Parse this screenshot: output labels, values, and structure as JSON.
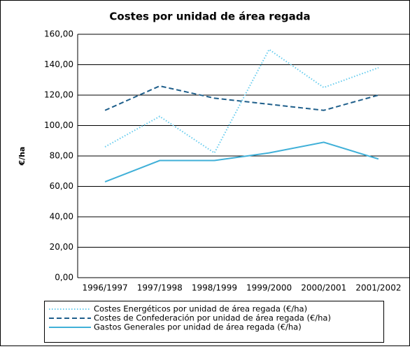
{
  "chart_data": {
    "type": "line",
    "title": "Costes por unidad de área regada",
    "y_label": "€/ha",
    "categories": [
      "1996/1997",
      "1997/1998",
      "1998/1999",
      "1999/2000",
      "2000/2001",
      "2001/2002"
    ],
    "series": [
      {
        "name": "Costes Energéticos por unidad de área regada (€/ha)",
        "color": "#66ccee",
        "dash": "dotted",
        "values": [
          86,
          106,
          82,
          150,
          125,
          138
        ]
      },
      {
        "name": "Costes de Confederación por unidad de área regada (€/ha)",
        "color": "#1f5f8b",
        "dash": "dashed",
        "values": [
          110,
          126,
          118,
          114,
          110,
          120
        ]
      },
      {
        "name": "Gastos Generales por unidad de área regada (€/ha)",
        "color": "#40b0d8",
        "dash": "solid",
        "values": [
          63,
          77,
          77,
          82,
          89,
          78
        ]
      }
    ],
    "ylim": [
      0,
      160
    ],
    "yticks": [
      {
        "value": 0,
        "label": "0,00"
      },
      {
        "value": 20,
        "label": "20,00"
      },
      {
        "value": 40,
        "label": "40,00"
      },
      {
        "value": 60,
        "label": "60,00"
      },
      {
        "value": 80,
        "label": "80,00"
      },
      {
        "value": 100,
        "label": "100,00"
      },
      {
        "value": 120,
        "label": "120,00"
      },
      {
        "value": 140,
        "label": "140,00"
      },
      {
        "value": 160,
        "label": "160,00"
      }
    ],
    "grid": true,
    "legend": "bottom"
  }
}
